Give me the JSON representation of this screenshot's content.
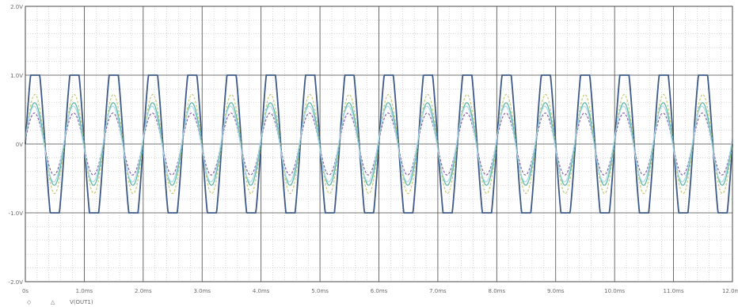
{
  "chart_data": {
    "type": "line",
    "title": "",
    "xlabel": "",
    "ylabel": "",
    "x_tick_labels": [
      "0s",
      "1.0ms",
      "2.0ms",
      "3.0ms",
      "4.0ms",
      "5.0ms",
      "6.0ms",
      "7.0ms",
      "8.0ms",
      "9.0ms",
      "10.0ms",
      "11.0ms",
      "12.0ms"
    ],
    "y_tick_labels": [
      "2.0V",
      "1.0V",
      "0V",
      "-1.0V",
      "-2.0V"
    ],
    "xlim": [
      0,
      12
    ],
    "x_unit": "ms",
    "ylim": [
      -2,
      2
    ],
    "y_unit": "V",
    "grid": true,
    "minor_grid": true,
    "legend": {
      "placement": "bottom-left",
      "label": "V(OUT1)"
    },
    "signal": {
      "frequency_khz": 1.5,
      "cycles_shown": 18
    },
    "series": [
      {
        "values_peak": 1.0,
        "clipped": true,
        "color": "#3d5a86"
      },
      {
        "values_peak": 0.72,
        "color": "#c5cb72"
      },
      {
        "values_peak": 0.6,
        "color": "#55b4a0"
      },
      {
        "values_peak": 0.45,
        "color": "#8a5fa6"
      },
      {
        "values_peak": 0.55,
        "color": "#a8d8ea"
      }
    ],
    "colors": {
      "major_grid": "#4a4a4a",
      "minor_grid": "#b0b0b0",
      "frame": "#4a4a4a"
    }
  }
}
